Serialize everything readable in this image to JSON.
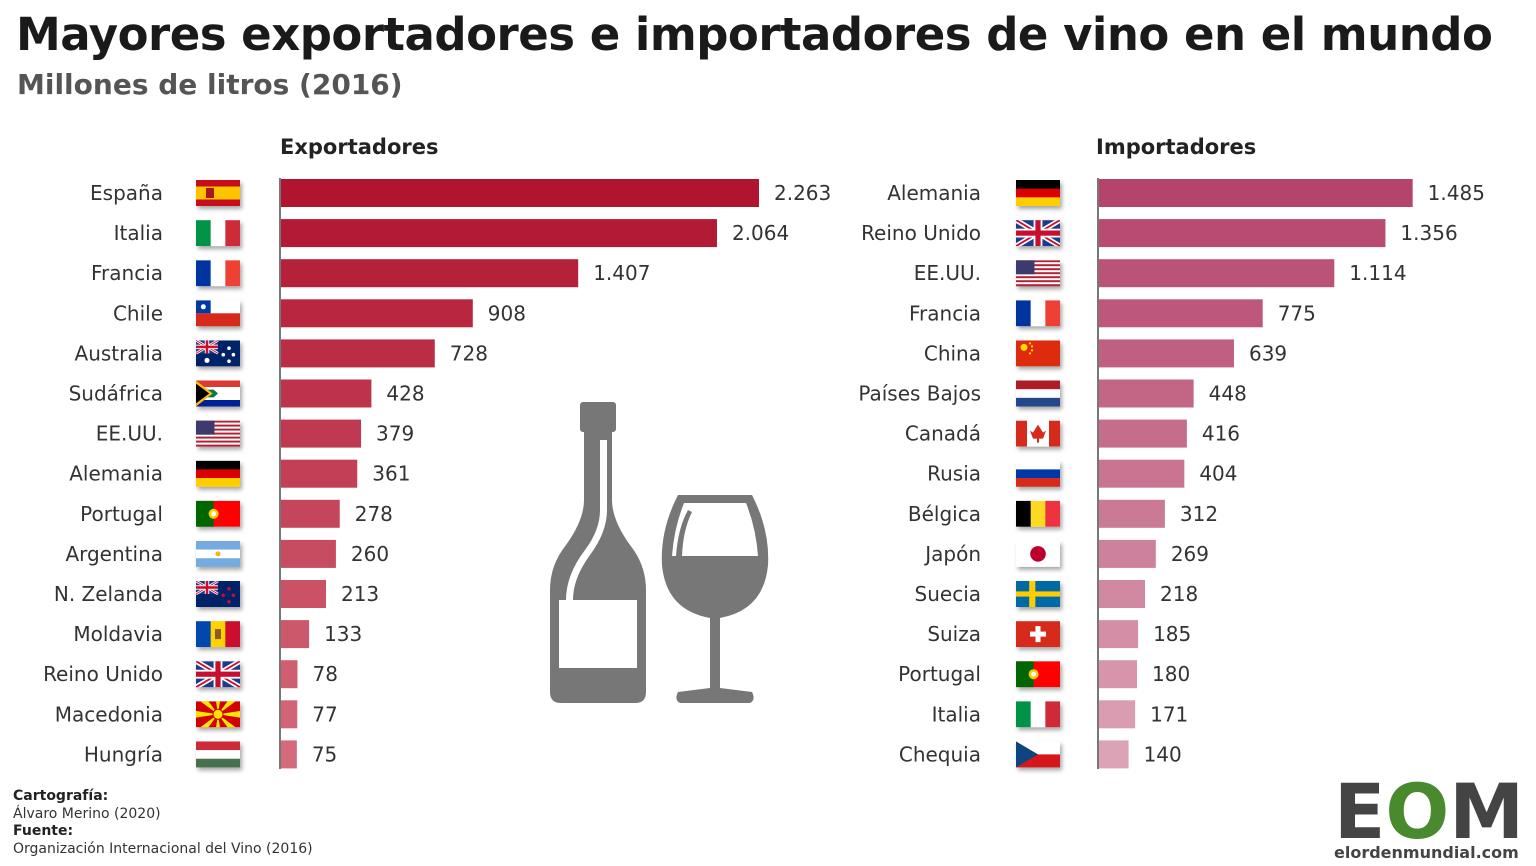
{
  "header": {
    "title": "Mayores exportadores e importadores de vino en el mundo",
    "subtitle": "Millones de litros (2016)"
  },
  "chart_data": [
    {
      "type": "bar",
      "orientation": "horizontal",
      "title": "Exportadores",
      "unit": "Millones de litros",
      "color_start": "#b0142f",
      "color_end": "#d46a7c",
      "categories": [
        "España",
        "Italia",
        "Francia",
        "Chile",
        "Australia",
        "Sudáfrica",
        "EE.UU.",
        "Alemania",
        "Portugal",
        "Argentina",
        "N. Zelanda",
        "Moldavia",
        "Reino Unido",
        "Macedonia",
        "Hungría"
      ],
      "values": [
        2263,
        2064,
        1407,
        908,
        728,
        428,
        379,
        361,
        278,
        260,
        213,
        133,
        78,
        77,
        75
      ],
      "labels": [
        "2.263",
        "2.064",
        "1.407",
        "908",
        "728",
        "428",
        "379",
        "361",
        "278",
        "260",
        "213",
        "133",
        "78",
        "77",
        "75"
      ],
      "flags": [
        "es",
        "it",
        "fr",
        "cl",
        "au",
        "za",
        "us",
        "de",
        "pt",
        "ar",
        "nz",
        "md",
        "gb",
        "mk",
        "hu"
      ]
    },
    {
      "type": "bar",
      "orientation": "horizontal",
      "title": "Importadores",
      "unit": "Millones de litros",
      "color_start": "#b5446c",
      "color_end": "#dca3b6",
      "categories": [
        "Alemania",
        "Reino Unido",
        "EE.UU.",
        "Francia",
        "China",
        "Países Bajos",
        "Canadá",
        "Rusia",
        "Bélgica",
        "Japón",
        "Suecia",
        "Suiza",
        "Portugal",
        "Italia",
        "Chequia"
      ],
      "values": [
        1485,
        1356,
        1114,
        775,
        639,
        448,
        416,
        404,
        312,
        269,
        218,
        185,
        180,
        171,
        140
      ],
      "labels": [
        "1.485",
        "1.356",
        "1.114",
        "775",
        "639",
        "448",
        "416",
        "404",
        "312",
        "269",
        "218",
        "185",
        "180",
        "171",
        "140"
      ],
      "flags": [
        "de",
        "gb",
        "us",
        "fr",
        "cn",
        "nl",
        "ca",
        "ru",
        "be",
        "jp",
        "se",
        "ch",
        "pt",
        "it",
        "cz"
      ]
    }
  ],
  "credits": {
    "cartography_label": "Cartografía:",
    "cartography": "Álvaro Merino (2020)",
    "source_label": "Fuente:",
    "source": "Organización Internacional del Vino (2016)"
  },
  "logo": {
    "text": "EOM",
    "site": "elordenmundial.com",
    "color_dark": "#444444",
    "color_green": "#4a8a2e"
  },
  "illustration": {
    "icons": [
      "wine-bottle-icon",
      "wine-glass-icon"
    ],
    "color": "#777777"
  }
}
